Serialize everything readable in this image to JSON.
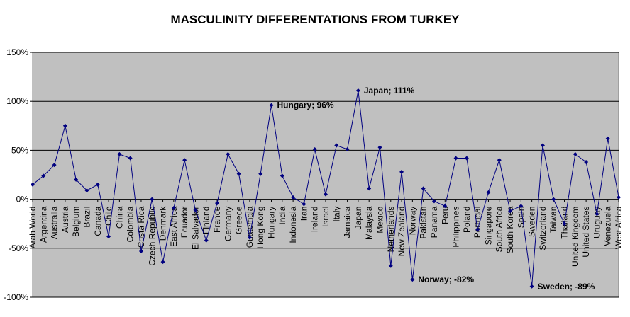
{
  "chart_data": {
    "type": "line",
    "title": "MASCULINITY DIFFERENTATIONS FROM TURKEY",
    "ylim": [
      -100,
      150
    ],
    "ytick_values": [
      -100,
      -50,
      0,
      50,
      100,
      150
    ],
    "ytick_labels": [
      "-100%",
      "-50%",
      "0%",
      "50%",
      "100%",
      "150%"
    ],
    "grid": "horizontal",
    "colors": {
      "plot_bg": "#c0c0c0",
      "line": "#000080",
      "marker": "#000080",
      "grid": "#000000",
      "border": "#808080"
    },
    "categories": [
      "Arab World",
      "Argentina",
      "Australia",
      "Austria",
      "Belgium",
      "Brazil",
      "Canada",
      "Chile",
      "China",
      "Colombia",
      "Costa Rica",
      "Czech Republic",
      "Denmark",
      "East Africa",
      "Ecuador",
      "El Salvador",
      "Finland",
      "France",
      "Germany",
      "Greece",
      "Guatemala",
      "Hong Kong",
      "Hungary",
      "India",
      "Indonesia",
      "Iran",
      "Ireland",
      "Israel",
      "Italy",
      "Jamaica",
      "Japan",
      "Malaysia",
      "Mexico",
      "Netherlands",
      "New Zealand",
      "Norway",
      "Pakistan",
      "Panama",
      "Peru",
      "Philippines",
      "Poland",
      "Portugal",
      "Singapore",
      "South Africa",
      "South Korea",
      "Spain",
      "Sweden",
      "Switzerland",
      "Taiwan",
      "Thailand",
      "United Kingdom",
      "United States",
      "Uruguay",
      "Venezuela",
      "West Africa"
    ],
    "series": [
      {
        "values": [
          15,
          24,
          35,
          75,
          20,
          9,
          15,
          -38,
          46,
          42,
          -53,
          0,
          -64,
          -9,
          40,
          -11,
          -42,
          -4,
          46,
          26,
          -39,
          26,
          96,
          24,
          2,
          -5,
          51,
          5,
          55,
          51,
          111,
          11,
          53,
          -68,
          28,
          -82,
          11,
          -2,
          -7,
          42,
          42,
          -31,
          7,
          40,
          -12,
          -7,
          -89,
          55,
          0,
          -25,
          46,
          38,
          -15,
          62,
          2
        ]
      }
    ],
    "annotations": [
      {
        "category": "Hungary",
        "text": "Hungary; 96%"
      },
      {
        "category": "Japan",
        "text": "Japan; 111%"
      },
      {
        "category": "Norway",
        "text": "Norway; -82%"
      },
      {
        "category": "Sweden",
        "text": "Sweden; -89%"
      }
    ]
  }
}
